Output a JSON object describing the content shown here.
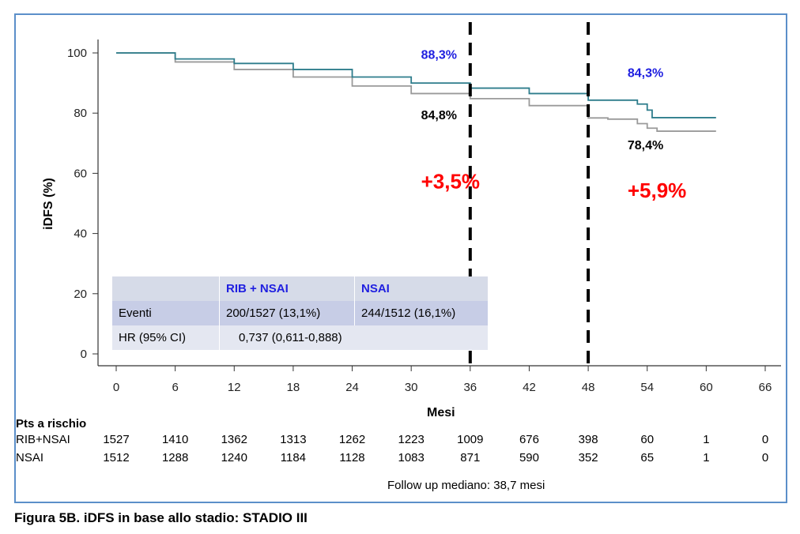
{
  "chart_data": {
    "type": "line",
    "xlabel": "Mesi",
    "ylabel": "iDFS  (%)",
    "xlim": [
      0,
      66
    ],
    "ylim": [
      0,
      100
    ],
    "x_ticks": [
      0,
      6,
      12,
      18,
      24,
      30,
      36,
      42,
      48,
      54,
      60,
      66
    ],
    "y_ticks": [
      0,
      20,
      40,
      60,
      80,
      100
    ],
    "series": [
      {
        "name": "RIB+NSAI",
        "color": "#2e7d8c",
        "x": [
          0,
          6,
          12,
          18,
          24,
          30,
          36,
          42,
          48,
          50,
          53,
          54,
          54.5,
          61
        ],
        "y": [
          100,
          98,
          96.5,
          94.5,
          92,
          90,
          88.3,
          86.5,
          84.3,
          84.3,
          83,
          81,
          78.5,
          78.5
        ]
      },
      {
        "name": "NSAI",
        "color": "#9a9a9a",
        "x": [
          0,
          6,
          12,
          18,
          24,
          30,
          36,
          42,
          48,
          50,
          53,
          54,
          55,
          61
        ],
        "y": [
          100,
          97,
          94.5,
          92,
          89,
          86.5,
          84.8,
          82.5,
          78.4,
          78,
          76.5,
          75,
          74,
          74
        ]
      }
    ],
    "vlines": [
      36,
      48
    ],
    "annotations": [
      {
        "text": "88,3%",
        "x": 31,
        "y": 98,
        "color": "#2020e0"
      },
      {
        "text": "84,8%",
        "x": 31,
        "y": 78,
        "color": "#000000"
      },
      {
        "text": "+3,5%",
        "x": 31,
        "y": 55,
        "color": "#ff0000"
      },
      {
        "text": "84,3%",
        "x": 52,
        "y": 92,
        "color": "#2020e0"
      },
      {
        "text": "78,4%",
        "x": 52,
        "y": 68,
        "color": "#000000"
      },
      {
        "text": "+5,9%",
        "x": 52,
        "y": 52,
        "color": "#ff0000"
      }
    ],
    "inset_table": {
      "headers": [
        "",
        "RIB + NSAI",
        "NSAI"
      ],
      "rows": [
        [
          "Eventi",
          "200/1527 (13,1%)",
          "244/1512 (16,1%)"
        ],
        [
          "HR (95% CI)",
          "0,737 (0,611-0,888)",
          ""
        ]
      ]
    }
  },
  "risk_table": {
    "title": "Pts a rischio",
    "rows": [
      {
        "label": "RIB+NSAI",
        "values": [
          "1527",
          "1410",
          "1362",
          "1313",
          "1262",
          "1223",
          "1009",
          "676",
          "398",
          "60",
          "1",
          "0"
        ]
      },
      {
        "label": "NSAI",
        "values": [
          "1512",
          "1288",
          "1240",
          "1184",
          "1128",
          "1083",
          "871",
          "590",
          "352",
          "65",
          "1",
          "0"
        ]
      }
    ]
  },
  "footnote": "Follow up mediano: 38,7 mesi",
  "caption": "Figura 5B. iDFS in base allo stadio: STADIO III"
}
